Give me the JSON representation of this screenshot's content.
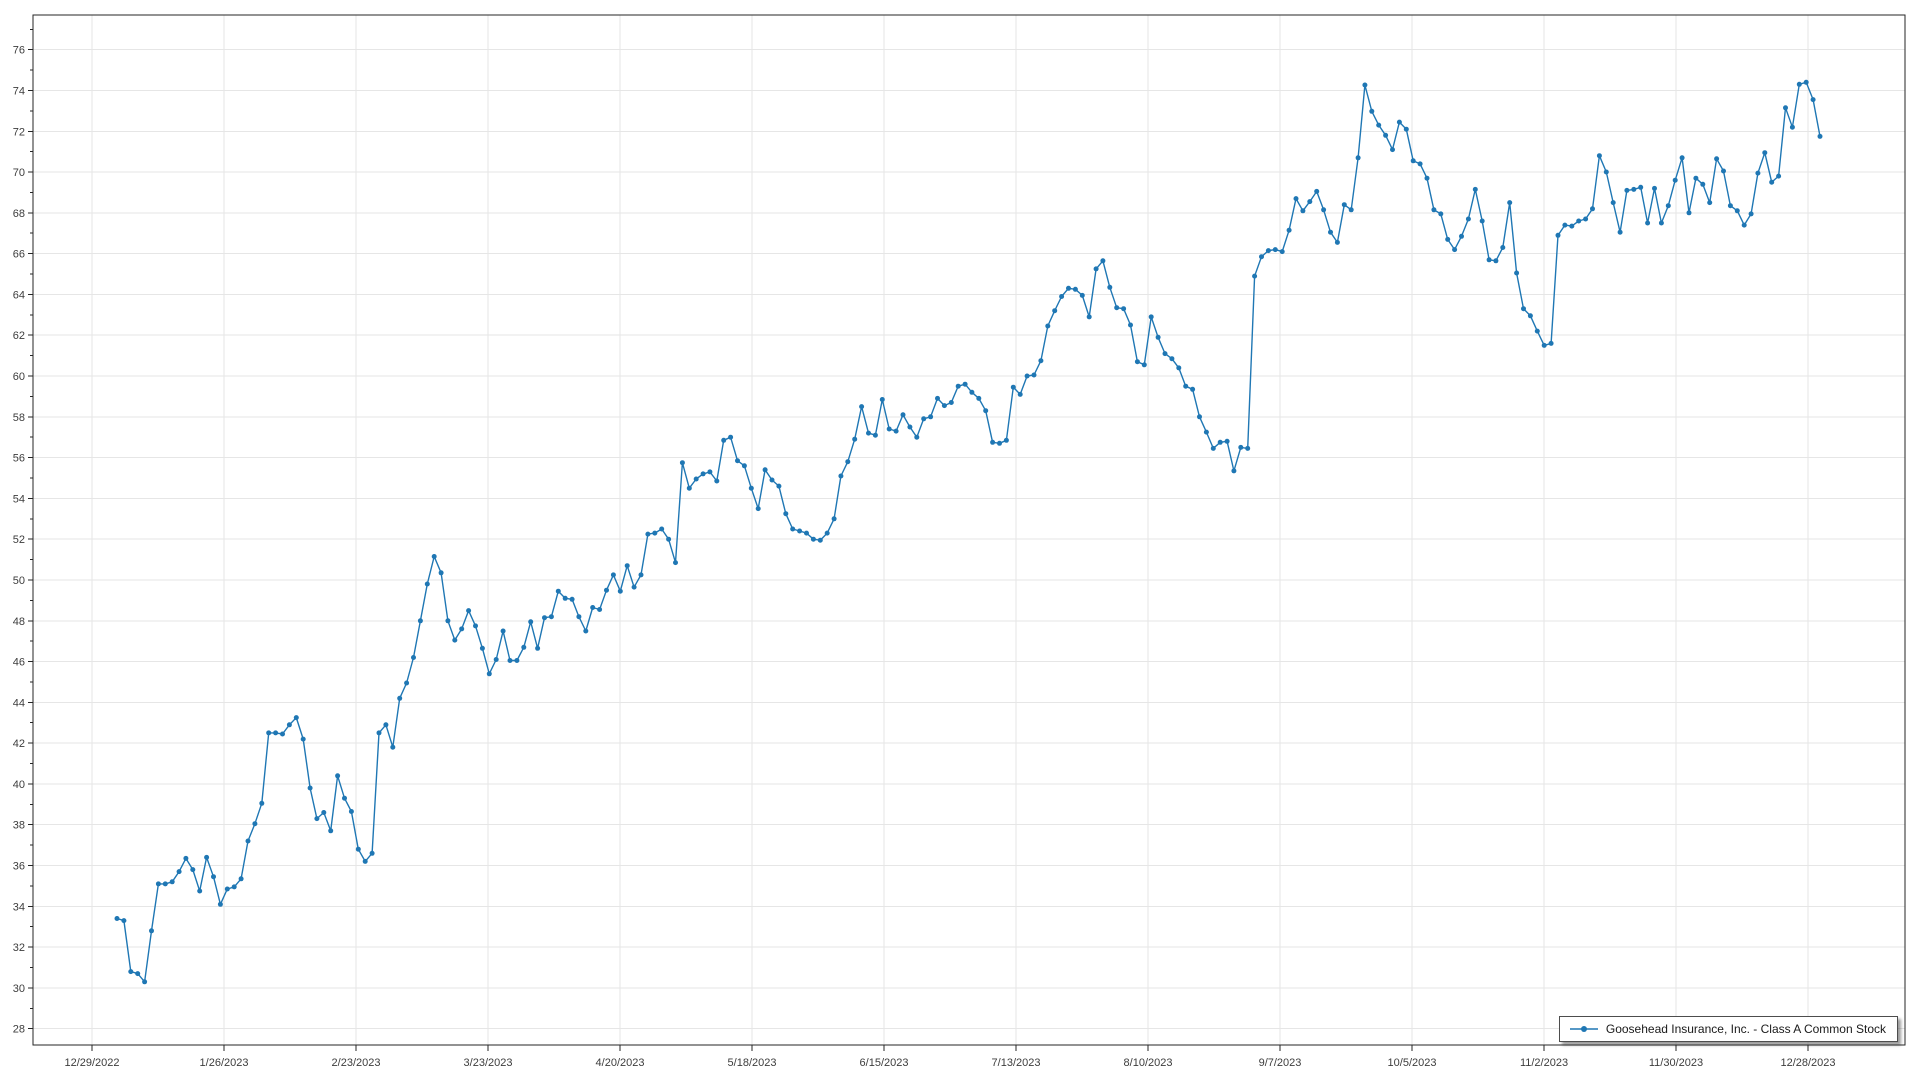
{
  "chart_data": {
    "type": "line",
    "title": "",
    "xlabel": "",
    "ylabel": "",
    "grid": true,
    "ylim": [
      27.2,
      77.7
    ],
    "x_axis_start_label": "12/29/2022",
    "x_tick_labels": [
      "12/29/2022",
      "1/26/2023",
      "2/23/2023",
      "3/23/2023",
      "4/20/2023",
      "5/18/2023",
      "6/15/2023",
      "7/13/2023",
      "8/10/2023",
      "9/7/2023",
      "10/5/2023",
      "11/2/2023",
      "11/30/2023",
      "12/28/2023"
    ],
    "y_tick_labels": [
      "28",
      "30",
      "32",
      "34",
      "36",
      "38",
      "40",
      "42",
      "44",
      "46",
      "48",
      "50",
      "52",
      "54",
      "56",
      "58",
      "60",
      "62",
      "64",
      "66",
      "68",
      "70",
      "72",
      "74",
      "76"
    ],
    "legend": {
      "position": "bottom-right",
      "label": "Goosehead Insurance, Inc. - Class A Common Stock"
    },
    "series": [
      {
        "name": "Goosehead Insurance, Inc. - Class A Common Stock",
        "color": "#1f77b4",
        "marker": "circle",
        "values": [
          33.4,
          33.3,
          30.8,
          30.7,
          30.3,
          32.8,
          35.1,
          35.1,
          35.2,
          35.7,
          36.35,
          35.8,
          34.75,
          36.4,
          35.45,
          34.1,
          34.85,
          34.95,
          35.35,
          37.2,
          38.05,
          39.05,
          42.5,
          42.5,
          42.45,
          42.9,
          43.25,
          42.2,
          39.8,
          38.3,
          38.6,
          37.7,
          40.4,
          39.3,
          38.65,
          36.8,
          36.2,
          36.6,
          42.5,
          42.9,
          41.8,
          44.2,
          44.95,
          46.2,
          48.0,
          49.8,
          51.15,
          50.35,
          48.0,
          47.05,
          47.6,
          48.5,
          47.75,
          46.65,
          45.4,
          46.1,
          47.5,
          46.05,
          46.05,
          46.7,
          47.95,
          46.65,
          48.15,
          48.2,
          49.45,
          49.1,
          49.05,
          48.2,
          47.5,
          48.65,
          48.55,
          49.5,
          50.25,
          49.45,
          50.7,
          49.65,
          50.25,
          52.25,
          52.3,
          52.5,
          52.0,
          50.85,
          55.75,
          54.5,
          54.95,
          55.2,
          55.3,
          54.85,
          56.85,
          57.0,
          55.85,
          55.6,
          54.5,
          53.5,
          55.4,
          54.9,
          54.6,
          53.25,
          52.5,
          52.4,
          52.3,
          52.0,
          51.95,
          52.3,
          53.0,
          55.1,
          55.8,
          56.9,
          58.5,
          57.2,
          57.1,
          58.85,
          57.4,
          57.3,
          58.1,
          57.5,
          57.0,
          57.9,
          58.0,
          58.9,
          58.55,
          58.7,
          59.5,
          59.6,
          59.2,
          58.9,
          58.3,
          56.75,
          56.7,
          56.85,
          59.45,
          59.1,
          60.0,
          60.05,
          60.75,
          62.45,
          63.2,
          63.9,
          64.3,
          64.25,
          63.95,
          62.9,
          65.25,
          65.65,
          64.35,
          63.35,
          63.3,
          62.5,
          60.7,
          60.55,
          62.9,
          61.9,
          61.1,
          60.85,
          60.4,
          59.5,
          59.35,
          58.0,
          57.25,
          56.45,
          56.75,
          56.8,
          55.35,
          56.5,
          56.45,
          64.9,
          65.85,
          66.15,
          66.2,
          66.1,
          67.15,
          68.7,
          68.1,
          68.55,
          69.05,
          68.15,
          67.05,
          66.55,
          68.4,
          68.15,
          70.7,
          74.27,
          72.98,
          72.3,
          71.8,
          71.1,
          72.45,
          72.1,
          70.55,
          70.4,
          69.7,
          68.15,
          67.95,
          66.7,
          66.2,
          66.85,
          67.7,
          69.15,
          67.6,
          65.7,
          65.65,
          66.3,
          68.5,
          65.05,
          63.3,
          62.95,
          62.2,
          61.5,
          61.6,
          66.9,
          67.4,
          67.35,
          67.6,
          67.7,
          68.2,
          70.8,
          70.0,
          68.5,
          67.05,
          69.1,
          69.15,
          69.25,
          67.5,
          69.2,
          67.5,
          68.35,
          69.6,
          70.7,
          68.0,
          69.7,
          69.4,
          68.5,
          70.65,
          70.05,
          68.35,
          68.1,
          67.4,
          67.95,
          69.95,
          70.95,
          69.5,
          69.8,
          73.15,
          72.2,
          74.3,
          74.4,
          73.55,
          71.75
        ]
      }
    ]
  },
  "styles": {
    "background": "#ffffff",
    "grid_color": "#e6e6e6",
    "axis_border_color": "#262626",
    "tick_color": "#262626",
    "tick_label_color": "#3d3d3d",
    "line_color": "#1f77b4",
    "marker_color": "#1f77b4",
    "legend_border_color": "#4d4d4d",
    "legend_text_color": "#1a1a1a"
  }
}
